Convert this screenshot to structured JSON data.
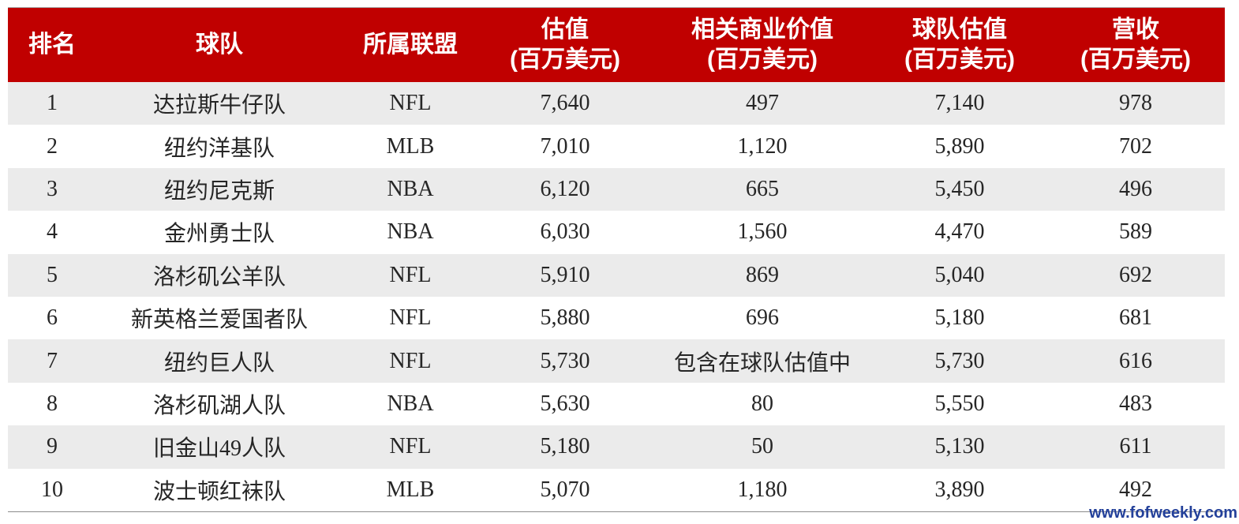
{
  "colors": {
    "header_background": "#C00000",
    "header_text": "#FFFFFF",
    "stripe": "#EBEBEB",
    "text": "#262626",
    "watermark": "#23409A"
  },
  "watermark": "www.fofweekly.com",
  "chart_data": {
    "type": "table",
    "columns": [
      {
        "name": "排名",
        "unit": ""
      },
      {
        "name": "球队",
        "unit": ""
      },
      {
        "name": "所属联盟",
        "unit": ""
      },
      {
        "name": "估值",
        "unit": "(百万美元)"
      },
      {
        "name": "相关商业价值",
        "unit": "(百万美元)"
      },
      {
        "name": "球队估值",
        "unit": "(百万美元)"
      },
      {
        "name": "营收",
        "unit": "(百万美元)"
      }
    ],
    "rows": [
      [
        "1",
        "达拉斯牛仔队",
        "NFL",
        "7,640",
        "497",
        "7,140",
        "978"
      ],
      [
        "2",
        "纽约洋基队",
        "MLB",
        "7,010",
        "1,120",
        "5,890",
        "702"
      ],
      [
        "3",
        "纽约尼克斯",
        "NBA",
        "6,120",
        "665",
        "5,450",
        "496"
      ],
      [
        "4",
        "金州勇士队",
        "NBA",
        "6,030",
        "1,560",
        "4,470",
        "589"
      ],
      [
        "5",
        "洛杉矶公羊队",
        "NFL",
        "5,910",
        "869",
        "5,040",
        "692"
      ],
      [
        "6",
        "新英格兰爱国者队",
        "NFL",
        "5,880",
        "696",
        "5,180",
        "681"
      ],
      [
        "7",
        "纽约巨人队",
        "NFL",
        "5,730",
        "包含在球队估值中",
        "5,730",
        "616"
      ],
      [
        "8",
        "洛杉矶湖人队",
        "NBA",
        "5,630",
        "80",
        "5,550",
        "483"
      ],
      [
        "9",
        "旧金山49人队",
        "NFL",
        "5,180",
        "50",
        "5,130",
        "611"
      ],
      [
        "10",
        "波士顿红袜队",
        "MLB",
        "5,070",
        "1,180",
        "3,890",
        "492"
      ]
    ]
  }
}
